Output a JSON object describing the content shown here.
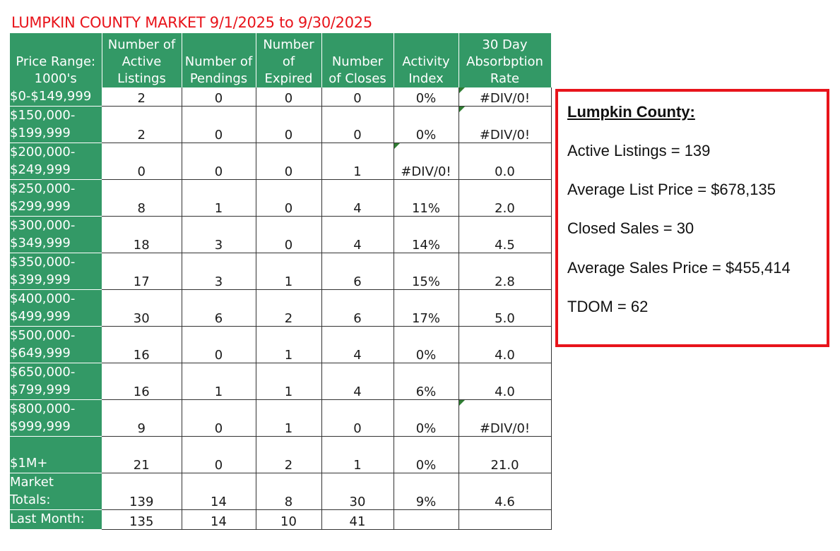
{
  "title": "LUMPKIN COUNTY MARKET 9/1/2025 to 9/30/2025",
  "colors": {
    "header_green": "#339966",
    "title_red": "#e8141b",
    "box_border": "#e8141b"
  },
  "table": {
    "headers": [
      {
        "lines": [
          "Price Range:",
          "1000's"
        ]
      },
      {
        "lines": [
          "Number  of",
          "Active",
          "Listings"
        ]
      },
      {
        "lines": [
          "Number of",
          "Pendings"
        ]
      },
      {
        "lines": [
          "Number",
          "of",
          "Expired"
        ]
      },
      {
        "lines": [
          "Number",
          "of Closes"
        ]
      },
      {
        "lines": [
          "Activity",
          "Index"
        ]
      },
      {
        "lines": [
          "30 Day",
          "Absorbption",
          "Rate"
        ]
      }
    ],
    "rows": [
      {
        "label": [
          "$0-$149,999"
        ],
        "active": "2",
        "pendings": "0",
        "expired": "0",
        "closes": "0",
        "activity": "0%",
        "absorption": "#DIV/0!"
      },
      {
        "label": [
          "$150,000-",
          "$199,999"
        ],
        "active": "2",
        "pendings": "0",
        "expired": "0",
        "closes": "0",
        "activity": "0%",
        "absorption": "#DIV/0!"
      },
      {
        "label": [
          "$200,000-",
          "$249,999"
        ],
        "active": "0",
        "pendings": "0",
        "expired": "0",
        "closes": "1",
        "activity": "#DIV/0!",
        "absorption": "0.0"
      },
      {
        "label": [
          "$250,000-",
          "$299,999"
        ],
        "active": "8",
        "pendings": "1",
        "expired": "0",
        "closes": "4",
        "activity": "11%",
        "absorption": "2.0"
      },
      {
        "label": [
          "$300,000-",
          "$349,999"
        ],
        "active": "18",
        "pendings": "3",
        "expired": "0",
        "closes": "4",
        "activity": "14%",
        "absorption": "4.5"
      },
      {
        "label": [
          "$350,000-",
          "$399,999"
        ],
        "active": "17",
        "pendings": "3",
        "expired": "1",
        "closes": "6",
        "activity": "15%",
        "absorption": "2.8"
      },
      {
        "label": [
          "$400,000-",
          "$499,999"
        ],
        "active": "30",
        "pendings": "6",
        "expired": "2",
        "closes": "6",
        "activity": "17%",
        "absorption": "5.0"
      },
      {
        "label": [
          "$500,000-",
          "$649,999"
        ],
        "active": "16",
        "pendings": "0",
        "expired": "1",
        "closes": "4",
        "activity": "0%",
        "absorption": "4.0"
      },
      {
        "label": [
          "$650,000-",
          "$799,999"
        ],
        "active": "16",
        "pendings": "1",
        "expired": "1",
        "closes": "4",
        "activity": "6%",
        "absorption": "4.0"
      },
      {
        "label": [
          "$800,000-",
          "$999,999"
        ],
        "active": "9",
        "pendings": "0",
        "expired": "1",
        "closes": "0",
        "activity": "0%",
        "absorption": "#DIV/0!"
      },
      {
        "label": [
          "",
          "$1M+"
        ],
        "active": "21",
        "pendings": "0",
        "expired": "2",
        "closes": "1",
        "activity": "0%",
        "absorption": "21.0"
      },
      {
        "label": [
          "Market",
          "Totals:"
        ],
        "active": "139",
        "pendings": "14",
        "expired": "8",
        "closes": "30",
        "activity": "9%",
        "absorption": "4.6"
      },
      {
        "label": [
          "Last Month:"
        ],
        "active": "135",
        "pendings": "14",
        "expired": "10",
        "closes": "41",
        "activity": "",
        "absorption": ""
      }
    ]
  },
  "summary": {
    "heading": "Lumpkin County:",
    "lines": [
      "Active Listings = 139",
      "Average List Price = $678,135",
      "Closed Sales = 30",
      "Average Sales Price = $455,414",
      "TDOM = 62"
    ]
  }
}
